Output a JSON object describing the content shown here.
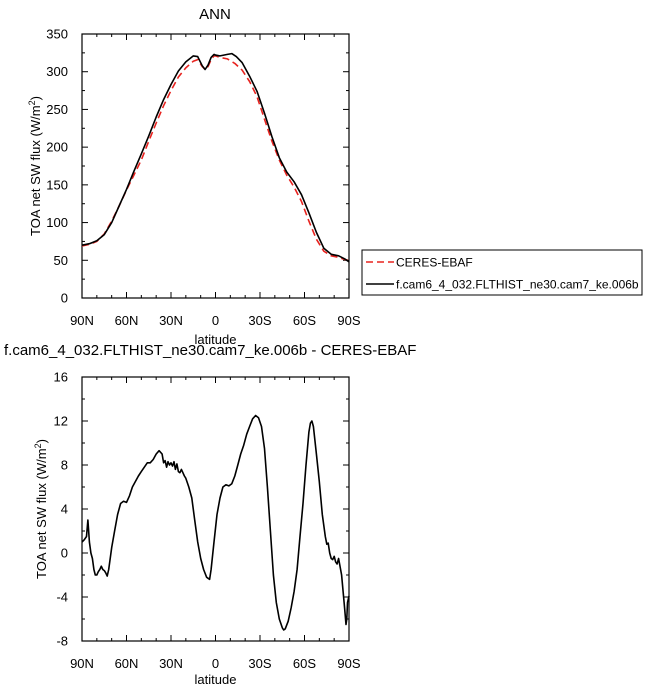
{
  "chart_data": [
    {
      "type": "line",
      "title": "ANN",
      "xlabel": "latitude",
      "ylabel": "TOA net SW flux (W/m",
      "ylabel_sup": "2",
      "ylabel_close": ")",
      "xlim": [
        90,
        -90
      ],
      "ylim": [
        0,
        350
      ],
      "xticks": [
        90,
        60,
        30,
        0,
        -30,
        -60,
        -90
      ],
      "xtick_labels": [
        "90N",
        "60N",
        "30N",
        "0",
        "30S",
        "60S",
        "90S"
      ],
      "yticks": [
        0,
        50,
        100,
        150,
        200,
        250,
        300,
        350
      ],
      "ytick_labels": [
        "0",
        "50",
        "100",
        "150",
        "200",
        "250",
        "300",
        "350"
      ],
      "grid": false,
      "legend_position": "right",
      "series": [
        {
          "name": "CERES-EBAF",
          "color": "#e8231f",
          "style": "dashed",
          "points": [
            [
              90,
              69
            ],
            [
              85,
              71
            ],
            [
              80,
              75
            ],
            [
              75,
              85
            ],
            [
              70,
              102
            ],
            [
              65,
              122
            ],
            [
              60,
              143
            ],
            [
              55,
              163
            ],
            [
              50,
              183
            ],
            [
              45,
              208
            ],
            [
              40,
              232
            ],
            [
              35,
              255
            ],
            [
              30,
              275
            ],
            [
              25,
              293
            ],
            [
              20,
              305
            ],
            [
              15,
              314
            ],
            [
              12,
              316
            ],
            [
              9,
              307
            ],
            [
              7,
              303
            ],
            [
              5,
              307
            ],
            [
              3,
              316
            ],
            [
              1,
              321
            ],
            [
              0,
              321
            ],
            [
              -3,
              319
            ],
            [
              -8,
              317
            ],
            [
              -13,
              311
            ],
            [
              -18,
              302
            ],
            [
              -23,
              287
            ],
            [
              -28,
              267
            ],
            [
              -33,
              237
            ],
            [
              -38,
              208
            ],
            [
              -43,
              183
            ],
            [
              -48,
              163
            ],
            [
              -53,
              147
            ],
            [
              -58,
              128
            ],
            [
              -63,
              102
            ],
            [
              -68,
              78
            ],
            [
              -73,
              62
            ],
            [
              -78,
              56
            ],
            [
              -83,
              54
            ],
            [
              -87,
              51
            ],
            [
              -90,
              50
            ]
          ]
        },
        {
          "name": "f.cam6_4_032.FLTHIST_ne30.cam7_ke.006b",
          "color": "#000000",
          "style": "solid",
          "points": [
            [
              90,
              70
            ],
            [
              85,
              72
            ],
            [
              80,
              76
            ],
            [
              75,
              84
            ],
            [
              70,
              100
            ],
            [
              65,
              122
            ],
            [
              60,
              144
            ],
            [
              55,
              168
            ],
            [
              50,
              191
            ],
            [
              45,
              215
            ],
            [
              40,
              240
            ],
            [
              35,
              263
            ],
            [
              30,
              283
            ],
            [
              25,
              301
            ],
            [
              20,
              313
            ],
            [
              15,
              321
            ],
            [
              12,
              320
            ],
            [
              9,
              308
            ],
            [
              7,
              303
            ],
            [
              5,
              309
            ],
            [
              3,
              319
            ],
            [
              1,
              323
            ],
            [
              0,
              322
            ],
            [
              -3,
              321
            ],
            [
              -8,
              323
            ],
            [
              -11,
              324
            ],
            [
              -14,
              320
            ],
            [
              -18,
              312
            ],
            [
              -23,
              294
            ],
            [
              -28,
              274
            ],
            [
              -33,
              245
            ],
            [
              -38,
              214
            ],
            [
              -43,
              186
            ],
            [
              -48,
              167
            ],
            [
              -53,
              154
            ],
            [
              -58,
              137
            ],
            [
              -63,
              113
            ],
            [
              -68,
              87
            ],
            [
              -73,
              66
            ],
            [
              -78,
              58
            ],
            [
              -83,
              56
            ],
            [
              -87,
              52
            ],
            [
              -90,
              48
            ]
          ]
        }
      ]
    },
    {
      "type": "line",
      "title": "f.cam6_4_032.FLTHIST_ne30.cam7_ke.006b - CERES-EBAF",
      "xlabel": "latitude",
      "ylabel": "TOA net SW flux (W/m",
      "ylabel_sup": "2",
      "ylabel_close": ")",
      "xlim": [
        90,
        -90
      ],
      "ylim": [
        -8,
        16
      ],
      "xticks": [
        90,
        60,
        30,
        0,
        -30,
        -60,
        -90
      ],
      "xtick_labels": [
        "90N",
        "60N",
        "30N",
        "0",
        "30S",
        "60S",
        "90S"
      ],
      "yticks": [
        -8,
        -4,
        0,
        4,
        8,
        12,
        16
      ],
      "ytick_labels": [
        "-8",
        "-4",
        "0",
        "4",
        "8",
        "12",
        "16"
      ],
      "grid": false,
      "series": [
        {
          "color": "#000000",
          "style": "solid",
          "points": [
            [
              90,
              1.0
            ],
            [
              88.5,
              1.2
            ],
            [
              87,
              1.5
            ],
            [
              86,
              3.0
            ],
            [
              85,
              1.0
            ],
            [
              84,
              0.0
            ],
            [
              83,
              -0.5
            ],
            [
              82,
              -1.5
            ],
            [
              81,
              -2.0
            ],
            [
              80,
              -2.0
            ],
            [
              79,
              -1.7
            ],
            [
              78,
              -1.5
            ],
            [
              77,
              -1.2
            ],
            [
              76,
              -1.5
            ],
            [
              75,
              -1.6
            ],
            [
              74,
              -1.8
            ],
            [
              73,
              -2.1
            ],
            [
              72,
              -1.5
            ],
            [
              71,
              -0.5
            ],
            [
              70,
              0.5
            ],
            [
              68,
              2.0
            ],
            [
              66,
              3.5
            ],
            [
              64,
              4.5
            ],
            [
              62,
              4.7
            ],
            [
              60,
              4.6
            ],
            [
              58,
              5.2
            ],
            [
              56,
              6.0
            ],
            [
              54,
              6.5
            ],
            [
              52,
              7.0
            ],
            [
              50,
              7.4
            ],
            [
              48,
              7.8
            ],
            [
              46,
              8.2
            ],
            [
              44,
              8.2
            ],
            [
              42,
              8.5
            ],
            [
              40,
              9.0
            ],
            [
              38,
              9.3
            ],
            [
              36,
              9.0
            ],
            [
              35,
              8.2
            ],
            [
              34,
              8.4
            ],
            [
              33,
              7.8
            ],
            [
              32,
              8.3
            ],
            [
              31,
              8.0
            ],
            [
              30,
              8.2
            ],
            [
              29,
              7.9
            ],
            [
              28,
              8.3
            ],
            [
              27,
              7.6
            ],
            [
              26,
              8.1
            ],
            [
              25,
              7.4
            ],
            [
              24,
              7.3
            ],
            [
              23,
              7.6
            ],
            [
              22,
              7.3
            ],
            [
              21,
              7.0
            ],
            [
              20,
              6.8
            ],
            [
              18,
              6.0
            ],
            [
              16,
              5.0
            ],
            [
              14,
              3.0
            ],
            [
              12,
              1.0
            ],
            [
              10,
              -0.5
            ],
            [
              8,
              -1.5
            ],
            [
              6,
              -2.2
            ],
            [
              5,
              -2.3
            ],
            [
              4,
              -2.4
            ],
            [
              3,
              -1.5
            ],
            [
              1,
              1.0
            ],
            [
              -1,
              3.5
            ],
            [
              -3,
              5.0
            ],
            [
              -5,
              6.0
            ],
            [
              -7,
              6.2
            ],
            [
              -9,
              6.1
            ],
            [
              -11,
              6.3
            ],
            [
              -13,
              7.0
            ],
            [
              -15,
              8.0
            ],
            [
              -17,
              9.0
            ],
            [
              -19,
              9.8
            ],
            [
              -21,
              10.8
            ],
            [
              -23,
              11.5
            ],
            [
              -25,
              12.2
            ],
            [
              -27,
              12.5
            ],
            [
              -29,
              12.3
            ],
            [
              -31,
              11.5
            ],
            [
              -33,
              9.5
            ],
            [
              -35,
              6.0
            ],
            [
              -37,
              2.0
            ],
            [
              -39,
              -2.0
            ],
            [
              -41,
              -4.5
            ],
            [
              -43,
              -6.0
            ],
            [
              -45,
              -6.8
            ],
            [
              -46,
              -7.0
            ],
            [
              -47,
              -6.9
            ],
            [
              -49,
              -6.2
            ],
            [
              -51,
              -5.0
            ],
            [
              -53,
              -3.5
            ],
            [
              -55,
              -1.5
            ],
            [
              -57,
              1.5
            ],
            [
              -59,
              4.5
            ],
            [
              -61,
              8.0
            ],
            [
              -63,
              11.0
            ],
            [
              -64,
              11.8
            ],
            [
              -65,
              12.0
            ],
            [
              -66,
              11.5
            ],
            [
              -68,
              9.0
            ],
            [
              -70,
              6.5
            ],
            [
              -72,
              3.5
            ],
            [
              -74,
              1.5
            ],
            [
              -75,
              0.8
            ],
            [
              -76,
              0.9
            ],
            [
              -77,
              0.0
            ],
            [
              -78,
              -0.5
            ],
            [
              -79,
              -0.6
            ],
            [
              -80,
              -0.3
            ],
            [
              -81,
              -0.8
            ],
            [
              -82,
              -1.0
            ],
            [
              -83,
              -0.5
            ],
            [
              -85,
              -2.0
            ],
            [
              -86,
              -3.5
            ],
            [
              -87,
              -5.0
            ],
            [
              -88,
              -6.5
            ],
            [
              -88.5,
              -6.0
            ],
            [
              -89,
              -4.5
            ],
            [
              -90,
              -3.9
            ]
          ]
        }
      ]
    }
  ]
}
